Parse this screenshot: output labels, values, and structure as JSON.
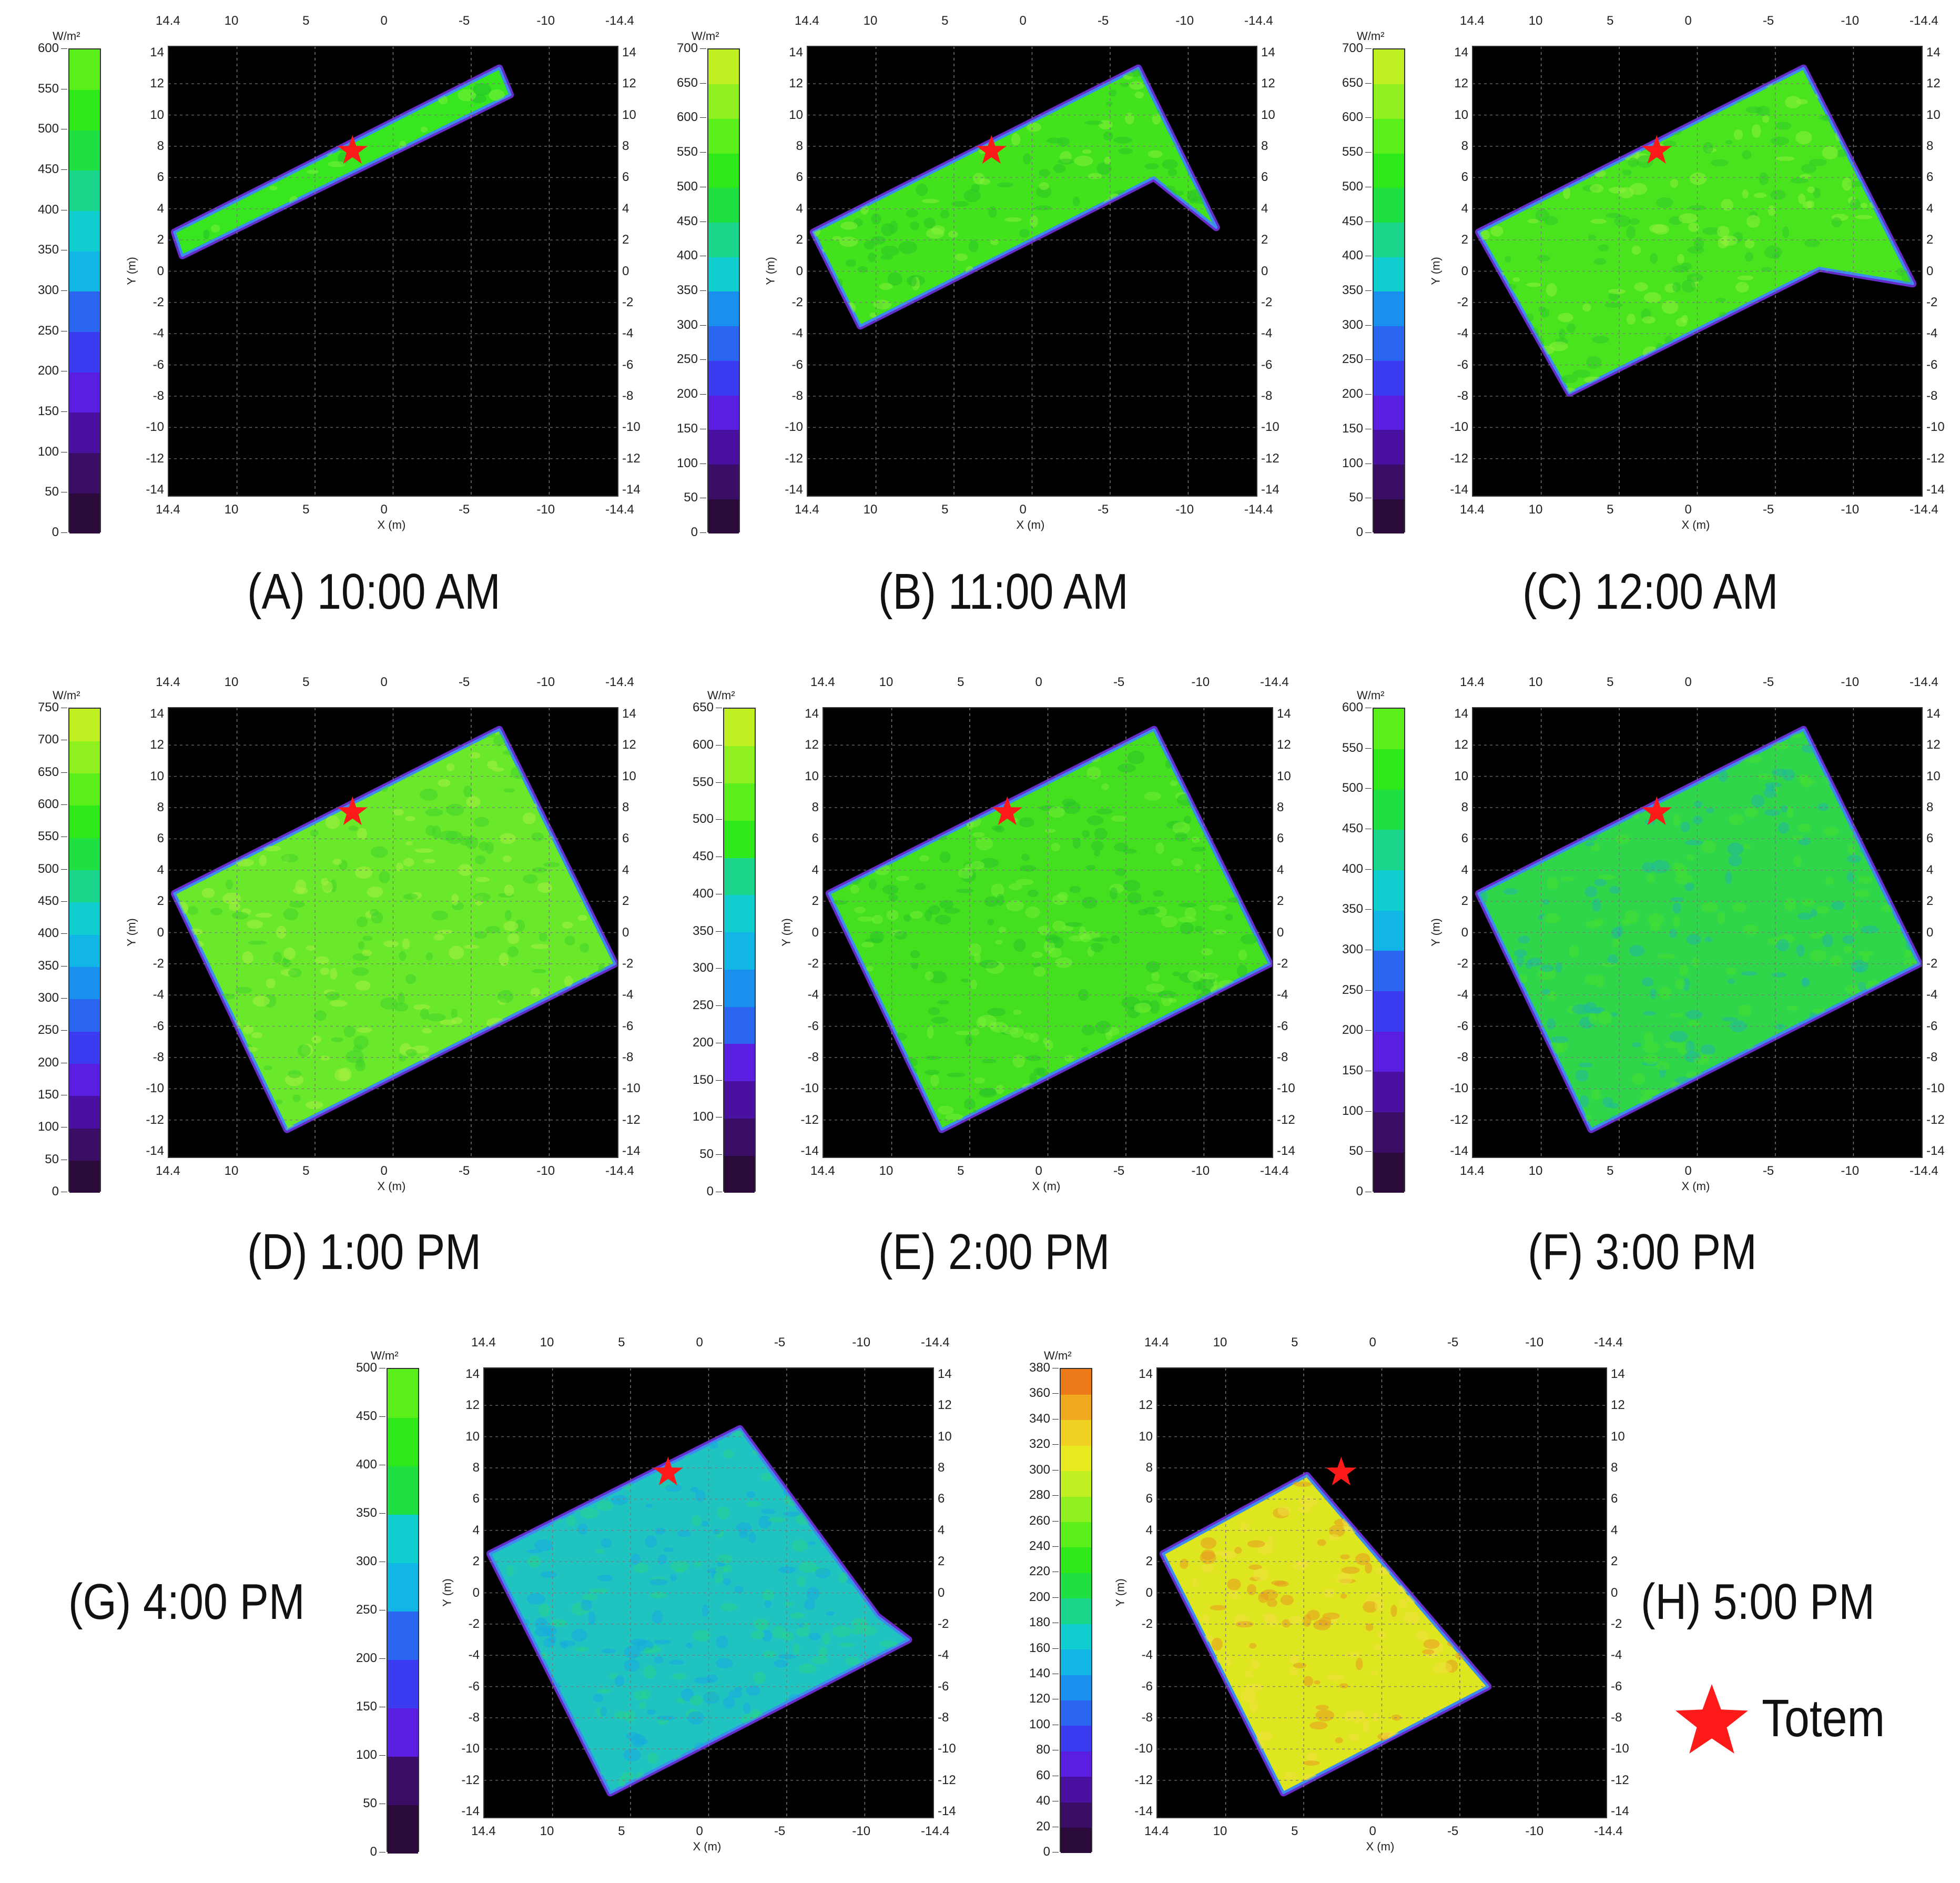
{
  "legend": {
    "marker_color": "#ff1a1a",
    "label": "Totem",
    "icon": "star-icon"
  },
  "colors": {
    "plot_background": "#000000",
    "grid": "#7a7a7a",
    "star": "#ff1a1a",
    "edge": "#6b2fd6"
  },
  "chart_data": [
    {
      "id": "A",
      "type": "heatmap",
      "caption": "(A) 10:00 AM",
      "unit": "W/m²",
      "colorbar_ticks": [
        0,
        50,
        100,
        150,
        200,
        250,
        300,
        350,
        400,
        450,
        500,
        550,
        600
      ],
      "colorbar_max": 600,
      "fill_color": "#37e61e",
      "xlabel": "X (m)",
      "ylabel": "Y (m)",
      "x_ticks": [
        "14.4",
        "10",
        "5",
        "0",
        "-5",
        "-10",
        "-14.4"
      ],
      "y_ticks": [
        "14",
        "12",
        "10",
        "8",
        "6",
        "4",
        "2",
        "0",
        "-2",
        "-4",
        "-6",
        "-8",
        "-10",
        "-12",
        "-14"
      ],
      "xlim": [
        14.4,
        -14.4
      ],
      "ylim": [
        -14.4,
        14.4
      ],
      "region": [
        [
          14.0,
          2.5
        ],
        [
          -6.8,
          13.0
        ],
        [
          -7.5,
          11.3
        ],
        [
          13.5,
          1.0
        ]
      ],
      "totem": [
        2.6,
        7.7
      ]
    },
    {
      "id": "B",
      "type": "heatmap",
      "caption": "(B) 11:00 AM",
      "unit": "W/m²",
      "colorbar_ticks": [
        0,
        50,
        100,
        150,
        200,
        250,
        300,
        350,
        400,
        450,
        500,
        550,
        600,
        650,
        700
      ],
      "colorbar_max": 700,
      "fill_color": "#42e21c",
      "xlabel": "X (m)",
      "ylabel": "Y (m)",
      "x_ticks": [
        "14.4",
        "10",
        "5",
        "0",
        "-5",
        "-10",
        "-14.4"
      ],
      "y_ticks": [
        "14",
        "12",
        "10",
        "8",
        "6",
        "4",
        "2",
        "0",
        "-2",
        "-4",
        "-6",
        "-8",
        "-10",
        "-12",
        "-14"
      ],
      "xlim": [
        14.4,
        -14.4
      ],
      "ylim": [
        -14.4,
        14.4
      ],
      "region": [
        [
          14.0,
          2.5
        ],
        [
          -6.8,
          13.0
        ],
        [
          -11.8,
          2.8
        ],
        [
          -7.8,
          6.0
        ],
        [
          11.0,
          -3.5
        ]
      ],
      "totem": [
        2.6,
        7.7
      ]
    },
    {
      "id": "C",
      "type": "heatmap",
      "caption": "(C) 12:00 AM",
      "unit": "W/m²",
      "colorbar_ticks": [
        0,
        50,
        100,
        150,
        200,
        250,
        300,
        350,
        400,
        450,
        500,
        550,
        600,
        650,
        700
      ],
      "colorbar_max": 700,
      "fill_color": "#4ae41e",
      "xlabel": "X (m)",
      "ylabel": "Y (m)",
      "x_ticks": [
        "14.4",
        "10",
        "5",
        "0",
        "-5",
        "-10",
        "-14.4"
      ],
      "y_ticks": [
        "14",
        "12",
        "10",
        "8",
        "6",
        "4",
        "2",
        "0",
        "-2",
        "-4",
        "-6",
        "-8",
        "-10",
        "-12",
        "-14"
      ],
      "xlim": [
        14.4,
        -14.4
      ],
      "ylim": [
        -14.4,
        14.4
      ],
      "region": [
        [
          14.0,
          2.5
        ],
        [
          -6.8,
          13.0
        ],
        [
          -13.8,
          -0.8
        ],
        [
          -7.8,
          0.2
        ],
        [
          8.2,
          -7.8
        ]
      ],
      "totem": [
        2.6,
        7.7
      ]
    },
    {
      "id": "D",
      "type": "heatmap",
      "caption": "(D) 1:00 PM",
      "unit": "W/m²",
      "colorbar_ticks": [
        0,
        50,
        100,
        150,
        200,
        250,
        300,
        350,
        400,
        450,
        500,
        550,
        600,
        650,
        700,
        750
      ],
      "colorbar_max": 750,
      "fill_color": "#6ae82a",
      "xlabel": "X (m)",
      "ylabel": "Y (m)",
      "x_ticks": [
        "14.4",
        "10",
        "5",
        "0",
        "-5",
        "-10",
        "-14.4"
      ],
      "y_ticks": [
        "14",
        "12",
        "10",
        "8",
        "6",
        "4",
        "2",
        "0",
        "-2",
        "-4",
        "-6",
        "-8",
        "-10",
        "-12",
        "-14"
      ],
      "xlim": [
        14.4,
        -14.4
      ],
      "ylim": [
        -14.4,
        14.4
      ],
      "region": [
        [
          14.0,
          2.5
        ],
        [
          -6.8,
          13.0
        ],
        [
          -14.2,
          -2.0
        ],
        [
          6.8,
          -12.6
        ]
      ],
      "totem": [
        2.6,
        7.7
      ]
    },
    {
      "id": "E",
      "type": "heatmap",
      "caption": "(E) 2:00 PM",
      "unit": "W/m²",
      "colorbar_ticks": [
        0,
        50,
        100,
        150,
        200,
        250,
        300,
        350,
        400,
        450,
        500,
        550,
        600,
        650
      ],
      "colorbar_max": 650,
      "fill_color": "#44e020",
      "xlabel": "X (m)",
      "ylabel": "Y (m)",
      "x_ticks": [
        "14.4",
        "10",
        "5",
        "0",
        "-5",
        "-10",
        "-14.4"
      ],
      "y_ticks": [
        "14",
        "12",
        "10",
        "8",
        "6",
        "4",
        "2",
        "0",
        "-2",
        "-4",
        "-6",
        "-8",
        "-10",
        "-12",
        "-14"
      ],
      "xlim": [
        14.4,
        -14.4
      ],
      "ylim": [
        -14.4,
        14.4
      ],
      "region": [
        [
          14.0,
          2.5
        ],
        [
          -6.8,
          13.0
        ],
        [
          -14.2,
          -2.0
        ],
        [
          6.8,
          -12.6
        ]
      ],
      "totem": [
        2.6,
        7.7
      ]
    },
    {
      "id": "F",
      "type": "heatmap",
      "caption": "(F) 3:00 PM",
      "unit": "W/m²",
      "colorbar_ticks": [
        0,
        50,
        100,
        150,
        200,
        250,
        300,
        350,
        400,
        450,
        500,
        550,
        600
      ],
      "colorbar_max": 600,
      "fill_color": "#2fd64a",
      "xlabel": "X (m)",
      "ylabel": "Y (m)",
      "x_ticks": [
        "14.4",
        "10",
        "5",
        "0",
        "-5",
        "-10",
        "-14.4"
      ],
      "y_ticks": [
        "14",
        "12",
        "10",
        "8",
        "6",
        "4",
        "2",
        "0",
        "-2",
        "-4",
        "-6",
        "-8",
        "-10",
        "-12",
        "-14"
      ],
      "xlim": [
        14.4,
        -14.4
      ],
      "ylim": [
        -14.4,
        14.4
      ],
      "region": [
        [
          14.0,
          2.5
        ],
        [
          -6.8,
          13.0
        ],
        [
          -14.2,
          -2.0
        ],
        [
          6.8,
          -12.6
        ]
      ],
      "totem": [
        2.6,
        7.7
      ]
    },
    {
      "id": "G",
      "type": "heatmap",
      "caption": "(G) 4:00 PM",
      "unit": "W/m²",
      "colorbar_ticks": [
        0,
        50,
        100,
        150,
        200,
        250,
        300,
        350,
        400,
        450,
        500
      ],
      "colorbar_max": 500,
      "fill_color": "#1fc4c0",
      "xlabel": "X (m)",
      "ylabel": "Y (m)",
      "x_ticks": [
        "14.4",
        "10",
        "5",
        "0",
        "-5",
        "-10",
        "-14.4"
      ],
      "y_ticks": [
        "14",
        "12",
        "10",
        "8",
        "6",
        "4",
        "2",
        "0",
        "-2",
        "-4",
        "-6",
        "-8",
        "-10",
        "-12",
        "-14"
      ],
      "xlim": [
        14.4,
        -14.4
      ],
      "ylim": [
        -14.4,
        14.4
      ],
      "region": [
        [
          14.0,
          2.5
        ],
        [
          -2.0,
          10.5
        ],
        [
          -10.8,
          -1.5
        ],
        [
          -12.8,
          -3.0
        ],
        [
          6.3,
          -12.8
        ]
      ],
      "totem": [
        2.6,
        7.7
      ]
    },
    {
      "id": "H",
      "type": "heatmap",
      "caption": "(H) 5:00 PM",
      "unit": "W/m²",
      "colorbar_ticks": [
        0,
        20,
        40,
        60,
        80,
        100,
        120,
        140,
        160,
        180,
        200,
        220,
        240,
        260,
        280,
        300,
        320,
        340,
        360,
        380
      ],
      "colorbar_max": 380,
      "fill_color": "#dde61e",
      "xlabel": "X (m)",
      "ylabel": "Y (m)",
      "x_ticks": [
        "14.4",
        "10",
        "5",
        "0",
        "-5",
        "-10",
        "-14.4"
      ],
      "y_ticks": [
        "14",
        "12",
        "10",
        "8",
        "6",
        "4",
        "2",
        "0",
        "-2",
        "-4",
        "-6",
        "-8",
        "-10",
        "-12",
        "-14"
      ],
      "xlim": [
        14.4,
        -14.4
      ],
      "ylim": [
        -14.4,
        14.4
      ],
      "region": [
        [
          14.0,
          2.5
        ],
        [
          4.8,
          7.5
        ],
        [
          -6.8,
          -6.0
        ],
        [
          6.3,
          -12.8
        ]
      ],
      "totem": [
        2.6,
        7.7
      ]
    }
  ]
}
